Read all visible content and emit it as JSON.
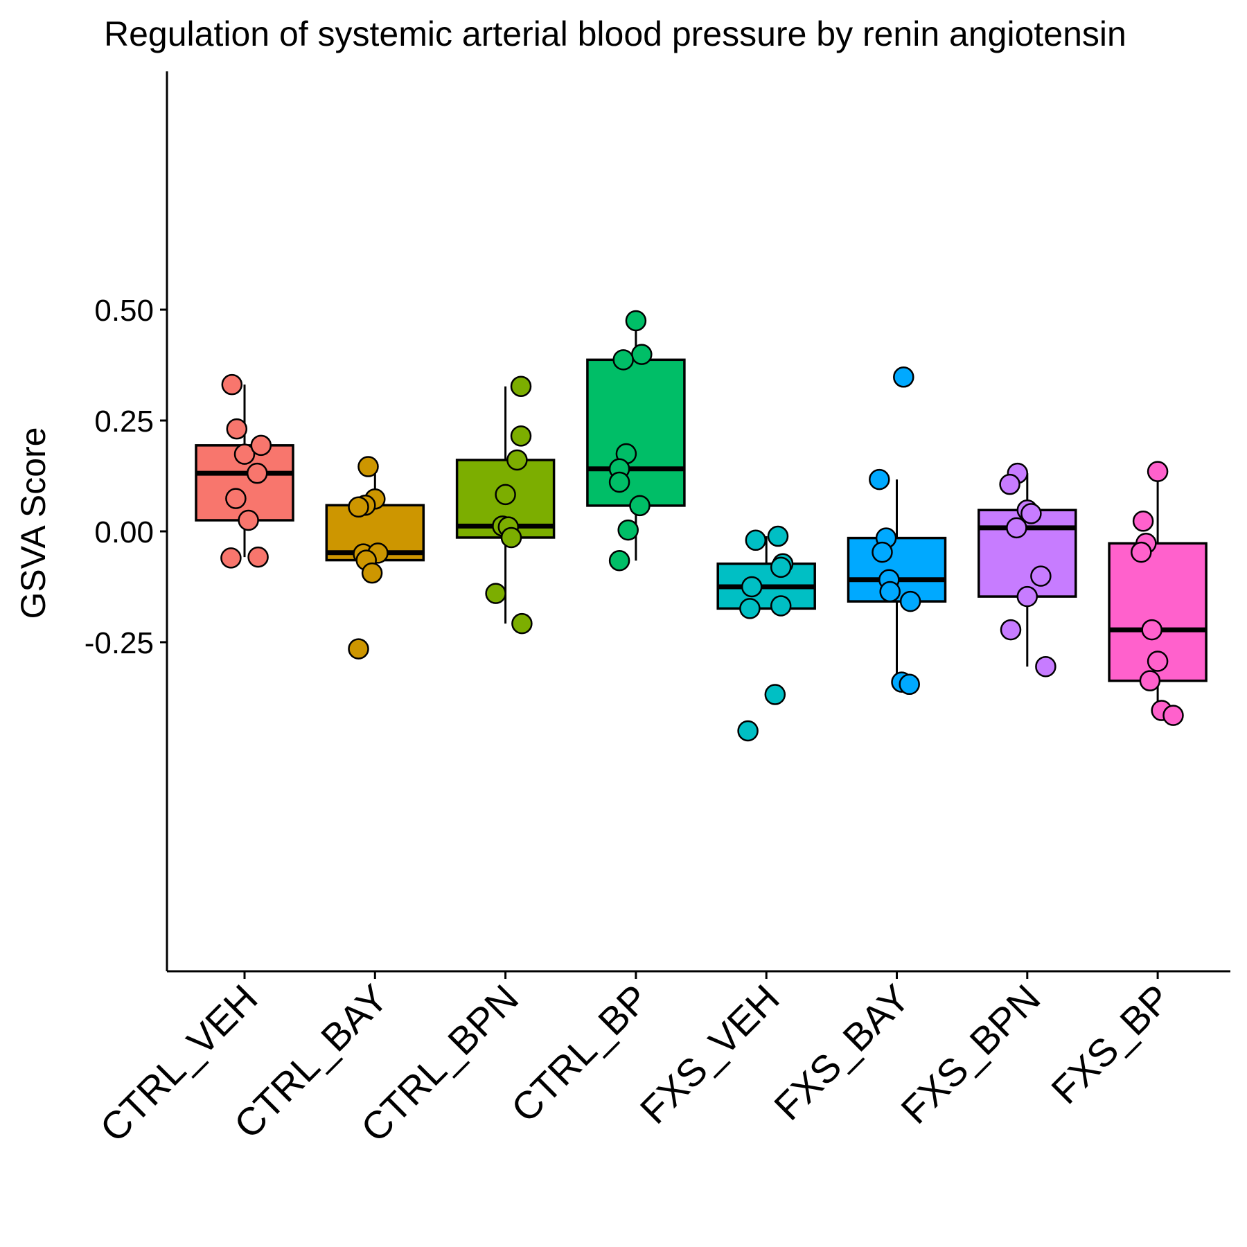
{
  "chart_data": {
    "type": "box",
    "title": "Regulation of systemic arterial blood pressure by renin angiotensin",
    "xlabel": "",
    "ylabel": "GSVA Score",
    "ylim": [
      -0.49,
      0.52
    ],
    "yticks": [
      0.5,
      0.25,
      0.0,
      -0.25
    ],
    "ytick_labels": [
      "0.50",
      "0.25",
      "0.00",
      "-0.25"
    ],
    "grid": false,
    "legend": "none",
    "categories": [
      "CTRL_VEH",
      "CTRL_BAY",
      "CTRL_BPN",
      "CTRL_BP",
      "FXS_VEH",
      "FXS_BAY",
      "FXS_BPN",
      "FXS_BP"
    ],
    "colors": [
      "#F8766D",
      "#CD9600",
      "#7CAE00",
      "#00BE67",
      "#00BFC4",
      "#00A9FF",
      "#C77CFF",
      "#FF61CC"
    ],
    "boxes": [
      {
        "whisker_low": -0.058,
        "q1": 0.025,
        "median": 0.131,
        "q3": 0.194,
        "whisker_high": 0.331
      },
      {
        "whisker_low": -0.094,
        "q1": -0.065,
        "median": -0.048,
        "q3": 0.059,
        "whisker_high": 0.146
      },
      {
        "whisker_low": -0.208,
        "q1": -0.014,
        "median": 0.012,
        "q3": 0.161,
        "whisker_high": 0.327
      },
      {
        "whisker_low": -0.066,
        "q1": 0.058,
        "median": 0.141,
        "q3": 0.387,
        "whisker_high": 0.475
      },
      {
        "whisker_low": -0.174,
        "q1": -0.174,
        "median": -0.125,
        "q3": -0.073,
        "whisker_high": -0.011
      },
      {
        "whisker_low": -0.345,
        "q1": -0.158,
        "median": -0.109,
        "q3": -0.015,
        "whisker_high": 0.117
      },
      {
        "whisker_low": -0.305,
        "q1": -0.147,
        "median": 0.008,
        "q3": 0.048,
        "whisker_high": 0.131
      },
      {
        "whisker_low": -0.402,
        "q1": -0.337,
        "median": -0.222,
        "q3": -0.027,
        "whisker_high": 0.135
      }
    ],
    "points": [
      [
        {
          "x": -0.13,
          "y": 0.331
        },
        {
          "x": -0.08,
          "y": 0.231
        },
        {
          "x": 0.0,
          "y": 0.174
        },
        {
          "x": 0.17,
          "y": 0.194
        },
        {
          "x": 0.13,
          "y": 0.131
        },
        {
          "x": -0.09,
          "y": 0.074
        },
        {
          "x": 0.04,
          "y": 0.025
        },
        {
          "x": -0.14,
          "y": -0.06
        },
        {
          "x": 0.14,
          "y": -0.058
        }
      ],
      [
        {
          "x": -0.07,
          "y": 0.146
        },
        {
          "x": 0.0,
          "y": 0.073
        },
        {
          "x": -0.1,
          "y": 0.059
        },
        {
          "x": -0.17,
          "y": 0.055
        },
        {
          "x": -0.12,
          "y": -0.051
        },
        {
          "x": 0.03,
          "y": -0.049
        },
        {
          "x": -0.09,
          "y": -0.065
        },
        {
          "x": -0.03,
          "y": -0.094
        },
        {
          "x": -0.17,
          "y": -0.265
        }
      ],
      [
        {
          "x": 0.16,
          "y": 0.327
        },
        {
          "x": 0.16,
          "y": 0.215
        },
        {
          "x": 0.12,
          "y": 0.161
        },
        {
          "x": 0.0,
          "y": 0.083
        },
        {
          "x": -0.03,
          "y": 0.012
        },
        {
          "x": 0.03,
          "y": 0.01
        },
        {
          "x": 0.06,
          "y": -0.014
        },
        {
          "x": -0.1,
          "y": -0.14
        },
        {
          "x": 0.17,
          "y": -0.208
        }
      ],
      [
        {
          "x": 0.0,
          "y": 0.475
        },
        {
          "x": 0.06,
          "y": 0.399
        },
        {
          "x": -0.13,
          "y": 0.387
        },
        {
          "x": -0.1,
          "y": 0.175
        },
        {
          "x": -0.17,
          "y": 0.141
        },
        {
          "x": -0.17,
          "y": 0.111
        },
        {
          "x": 0.04,
          "y": 0.058
        },
        {
          "x": -0.08,
          "y": 0.003
        },
        {
          "x": -0.17,
          "y": -0.066
        }
      ],
      [
        {
          "x": -0.11,
          "y": -0.02
        },
        {
          "x": 0.12,
          "y": -0.011
        },
        {
          "x": 0.17,
          "y": -0.073
        },
        {
          "x": 0.15,
          "y": -0.081
        },
        {
          "x": -0.15,
          "y": -0.125
        },
        {
          "x": 0.15,
          "y": -0.168
        },
        {
          "x": -0.17,
          "y": -0.174
        },
        {
          "x": 0.09,
          "y": -0.368
        },
        {
          "x": -0.19,
          "y": -0.45
        }
      ],
      [
        {
          "x": 0.07,
          "y": 0.348
        },
        {
          "x": -0.18,
          "y": 0.117
        },
        {
          "x": -0.11,
          "y": -0.015
        },
        {
          "x": -0.15,
          "y": -0.047
        },
        {
          "x": -0.08,
          "y": -0.109
        },
        {
          "x": -0.07,
          "y": -0.136
        },
        {
          "x": 0.14,
          "y": -0.158
        },
        {
          "x": 0.05,
          "y": -0.34
        },
        {
          "x": 0.13,
          "y": -0.345
        }
      ],
      [
        {
          "x": -0.1,
          "y": 0.131
        },
        {
          "x": -0.18,
          "y": 0.106
        },
        {
          "x": 0.0,
          "y": 0.048
        },
        {
          "x": 0.04,
          "y": 0.04
        },
        {
          "x": -0.11,
          "y": 0.008
        },
        {
          "x": 0.14,
          "y": -0.101
        },
        {
          "x": 0.0,
          "y": -0.147
        },
        {
          "x": -0.17,
          "y": -0.222
        },
        {
          "x": 0.19,
          "y": -0.305
        }
      ],
      [
        {
          "x": 0.0,
          "y": 0.135
        },
        {
          "x": -0.15,
          "y": 0.023
        },
        {
          "x": -0.12,
          "y": -0.027
        },
        {
          "x": -0.17,
          "y": -0.047
        },
        {
          "x": -0.06,
          "y": -0.222
        },
        {
          "x": 0.0,
          "y": -0.293
        },
        {
          "x": -0.08,
          "y": -0.337
        },
        {
          "x": 0.04,
          "y": -0.404
        },
        {
          "x": 0.16,
          "y": -0.415
        }
      ]
    ]
  }
}
